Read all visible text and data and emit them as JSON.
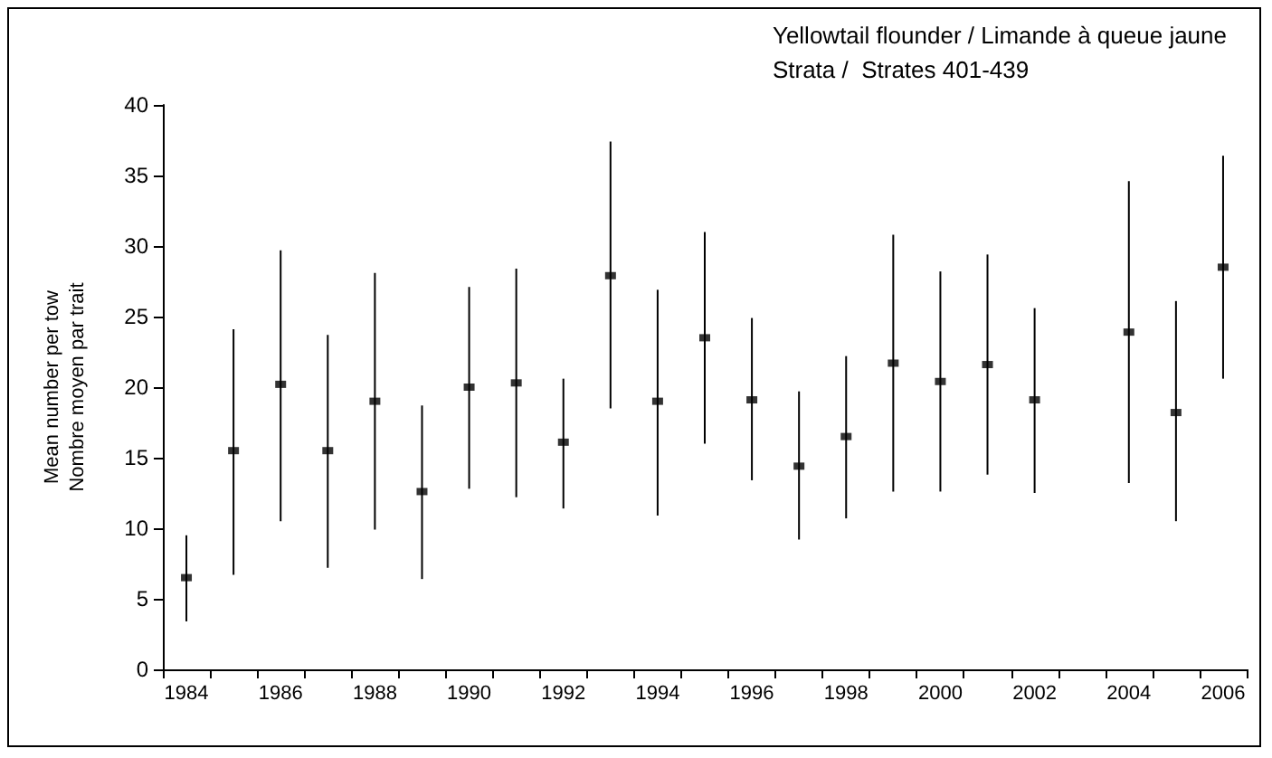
{
  "chart_data": {
    "type": "scatter",
    "title": "Yellowtail flounder / Limande à queue jaune",
    "subtitle": "Strata /  Strates 401-439",
    "ylabel": "Mean number per tow\nNombre moyen par trait",
    "categories": [
      "1984",
      null,
      "1986",
      null,
      "1988",
      null,
      "1990",
      null,
      "1992",
      null,
      "1994",
      null,
      "1996",
      null,
      "1998",
      null,
      "2000",
      null,
      "2002",
      null,
      "2004",
      null,
      "2006"
    ],
    "values": [
      6.5,
      15.5,
      20.2,
      15.5,
      19,
      12.6,
      20,
      20.3,
      16.1,
      27.9,
      19,
      23.5,
      19.1,
      14.4,
      16.5,
      21.7,
      20.4,
      21.6,
      19.1,
      null,
      23.9,
      18.2,
      28.5
    ],
    "errors": [
      [
        3.4,
        9.5
      ],
      [
        6.7,
        24.1
      ],
      [
        10.5,
        29.7
      ],
      [
        7.2,
        23.7
      ],
      [
        9.9,
        28.1
      ],
      [
        6.4,
        18.7
      ],
      [
        12.8,
        27.1
      ],
      [
        12.2,
        28.4
      ],
      [
        11.4,
        20.6
      ],
      [
        18.5,
        37.4
      ],
      [
        10.9,
        26.9
      ],
      [
        16,
        31
      ],
      [
        13.4,
        24.9
      ],
      [
        9.2,
        19.7
      ],
      [
        10.7,
        22.2
      ],
      [
        12.6,
        30.8
      ],
      [
        12.6,
        28.2
      ],
      [
        13.8,
        29.4
      ],
      [
        12.5,
        25.6
      ],
      null,
      [
        13.2,
        34.6
      ],
      [
        10.5,
        26.1
      ],
      [
        20.6,
        36.4
      ]
    ],
    "color": "#000000",
    "marker": "square",
    "ylim": [
      0,
      40
    ],
    "yticks": [
      0,
      5,
      10,
      15,
      20,
      25,
      30,
      35,
      40
    ],
    "grid": false
  }
}
